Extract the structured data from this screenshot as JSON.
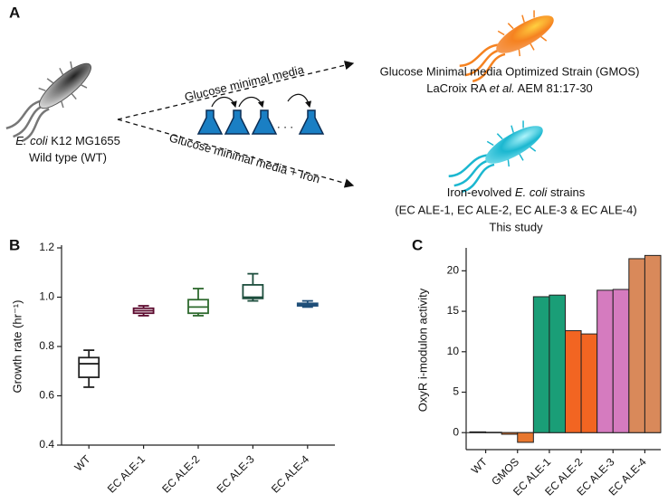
{
  "panel_a": {
    "label": "A",
    "wt": {
      "species": "E. coli",
      "strain": " K12 MG1655",
      "note": "Wild type (WT)"
    },
    "arrow_top": "Glucose minimal media",
    "arrow_bottom": "Glucose minimal media + Iron",
    "ellipsis": ". . .",
    "gmos": {
      "name": "Glucose Minimal media Optimized Strain (GMOS)",
      "ref_pre": "LaCroix RA ",
      "ref_it": "et al.",
      "ref_post": " AEM 81:17-30"
    },
    "iron": {
      "pre": "Iron-evolved ",
      "it": "E. coli",
      "post": " strains",
      "list": "(EC ALE-1, EC ALE-2, EC ALE-3 & EC ALE-4)",
      "note": "This study"
    }
  },
  "chart_data": [
    {
      "type": "box",
      "label": "B",
      "y_label": "Growth rate (hr⁻¹)",
      "categories": [
        "WT",
        "EC ALE-1",
        "EC ALE-2",
        "EC ALE-3",
        "EC ALE-4"
      ],
      "colors": [
        "#222222",
        "#5c0a2e",
        "#2e6a2e",
        "#1c4d3c",
        "#1f4e79"
      ],
      "values": [
        {
          "min": 0.635,
          "q1": 0.675,
          "median": 0.73,
          "q3": 0.755,
          "max": 0.785
        },
        {
          "min": 0.925,
          "q1": 0.935,
          "median": 0.945,
          "q3": 0.955,
          "max": 0.965
        },
        {
          "min": 0.925,
          "q1": 0.935,
          "median": 0.96,
          "q3": 0.99,
          "max": 1.035
        },
        {
          "min": 0.985,
          "q1": 0.995,
          "median": 1.0,
          "q3": 1.05,
          "max": 1.095
        },
        {
          "min": 0.96,
          "q1": 0.965,
          "median": 0.97,
          "q3": 0.975,
          "max": 0.985
        }
      ],
      "ylim": [
        0.4,
        1.2
      ],
      "yticks": [
        0.4,
        0.6,
        0.8,
        {
          "value": 1,
          "label": "1.0"
        },
        1.2
      ]
    },
    {
      "type": "bar",
      "label": "C",
      "y_label": "OxyR i-modulon activity",
      "categories": [
        "WT",
        null,
        "GMOS",
        null,
        "EC ALE-1",
        null,
        "EC ALE-2",
        null,
        "EC ALE-3",
        null,
        "EC ALE-4",
        null
      ],
      "values": [
        0.1,
        0.05,
        -0.2,
        -1.2,
        16.8,
        17.0,
        12.6,
        12.2,
        17.6,
        17.7,
        21.5,
        21.9
      ],
      "colors": [
        "#222222",
        "#222222",
        "#e8772e",
        "#e8772e",
        "#1a9e77",
        "#1a9e77",
        "#f26522",
        "#f26522",
        "#d57bbf",
        "#d57bbf",
        "#d9895a",
        "#d9895a"
      ],
      "ylim": [
        -2.1,
        22.5
      ],
      "yticks": [
        0,
        5,
        10,
        15,
        20
      ]
    }
  ]
}
